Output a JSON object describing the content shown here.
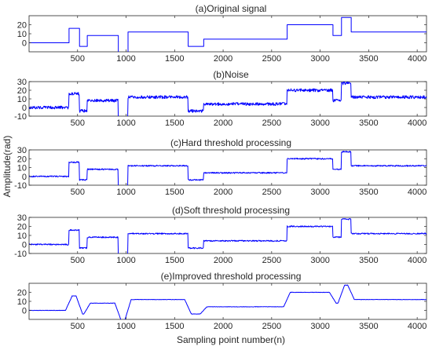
{
  "figure": {
    "ylabel": "Amplitude(rad)",
    "xlabel": "Sampling point number(n)"
  },
  "chart_data": [
    {
      "type": "line",
      "title": "(a)Original signal",
      "xlim": [
        0,
        4096
      ],
      "ylim": [
        -10,
        30
      ],
      "xticks": [
        "500",
        "1000",
        "1500",
        "2000",
        "2500",
        "3000",
        "3500",
        "4000"
      ],
      "yticks": [
        "0",
        "10",
        "20"
      ],
      "color": "#0000ff",
      "noise": 0,
      "smooth": false,
      "segments": [
        {
          "x_start": 0,
          "x_end": 410,
          "y": 0
        },
        {
          "x_start": 410,
          "x_end": 520,
          "y": 16
        },
        {
          "x_start": 520,
          "x_end": 600,
          "y": -4
        },
        {
          "x_start": 600,
          "x_end": 920,
          "y": 8
        },
        {
          "x_start": 920,
          "x_end": 1020,
          "y": -12
        },
        {
          "x_start": 1020,
          "x_end": 1640,
          "y": 12
        },
        {
          "x_start": 1640,
          "x_end": 1800,
          "y": -4
        },
        {
          "x_start": 1800,
          "x_end": 2660,
          "y": 4
        },
        {
          "x_start": 2660,
          "x_end": 3130,
          "y": 20
        },
        {
          "x_start": 3130,
          "x_end": 3220,
          "y": 8
        },
        {
          "x_start": 3220,
          "x_end": 3320,
          "y": 28
        },
        {
          "x_start": 3320,
          "x_end": 4096,
          "y": 12
        }
      ]
    },
    {
      "type": "line",
      "title": "(b)Noise",
      "xlim": [
        0,
        4096
      ],
      "ylim": [
        -10,
        30
      ],
      "xticks": [
        "500",
        "1000",
        "1500",
        "2000",
        "2500",
        "3000",
        "3500",
        "4000"
      ],
      "yticks": [
        "-10",
        "0",
        "10",
        "20",
        "30"
      ],
      "color": "#0000ff",
      "noise": 1.1,
      "smooth": false,
      "segments": [
        {
          "x_start": 0,
          "x_end": 410,
          "y": 0
        },
        {
          "x_start": 410,
          "x_end": 520,
          "y": 16
        },
        {
          "x_start": 520,
          "x_end": 600,
          "y": -4
        },
        {
          "x_start": 600,
          "x_end": 920,
          "y": 8
        },
        {
          "x_start": 920,
          "x_end": 1020,
          "y": -12
        },
        {
          "x_start": 1020,
          "x_end": 1640,
          "y": 12
        },
        {
          "x_start": 1640,
          "x_end": 1800,
          "y": -4
        },
        {
          "x_start": 1800,
          "x_end": 2660,
          "y": 4
        },
        {
          "x_start": 2660,
          "x_end": 3130,
          "y": 20
        },
        {
          "x_start": 3130,
          "x_end": 3220,
          "y": 8
        },
        {
          "x_start": 3220,
          "x_end": 3320,
          "y": 28
        },
        {
          "x_start": 3320,
          "x_end": 4096,
          "y": 12
        }
      ]
    },
    {
      "type": "line",
      "title": "(c)Hard threshold processing",
      "xlim": [
        0,
        4096
      ],
      "ylim": [
        -10,
        30
      ],
      "xticks": [
        "500",
        "1000",
        "1500",
        "2000",
        "2500",
        "3000",
        "3500",
        "4000"
      ],
      "yticks": [
        "-10",
        "0",
        "10",
        "20",
        "30"
      ],
      "color": "#0000ff",
      "noise": 0.45,
      "smooth": false,
      "segments": [
        {
          "x_start": 0,
          "x_end": 410,
          "y": 0
        },
        {
          "x_start": 410,
          "x_end": 520,
          "y": 16
        },
        {
          "x_start": 520,
          "x_end": 600,
          "y": -4
        },
        {
          "x_start": 600,
          "x_end": 920,
          "y": 8
        },
        {
          "x_start": 920,
          "x_end": 1020,
          "y": -12
        },
        {
          "x_start": 1020,
          "x_end": 1640,
          "y": 12
        },
        {
          "x_start": 1640,
          "x_end": 1800,
          "y": -4
        },
        {
          "x_start": 1800,
          "x_end": 2660,
          "y": 4
        },
        {
          "x_start": 2660,
          "x_end": 3130,
          "y": 20
        },
        {
          "x_start": 3130,
          "x_end": 3220,
          "y": 8
        },
        {
          "x_start": 3220,
          "x_end": 3320,
          "y": 28
        },
        {
          "x_start": 3320,
          "x_end": 4096,
          "y": 12
        }
      ]
    },
    {
      "type": "line",
      "title": "(d)Soft threshold processing",
      "xlim": [
        0,
        4096
      ],
      "ylim": [
        -10,
        30
      ],
      "xticks": [
        "500",
        "1000",
        "1500",
        "2000",
        "2500",
        "3000",
        "3500",
        "4000"
      ],
      "yticks": [
        "-10",
        "0",
        "10",
        "20",
        "30"
      ],
      "color": "#0000ff",
      "noise": 0.45,
      "smooth": false,
      "segments": [
        {
          "x_start": 0,
          "x_end": 410,
          "y": 0
        },
        {
          "x_start": 410,
          "x_end": 520,
          "y": 16
        },
        {
          "x_start": 520,
          "x_end": 600,
          "y": -4
        },
        {
          "x_start": 600,
          "x_end": 920,
          "y": 8
        },
        {
          "x_start": 920,
          "x_end": 1020,
          "y": -12
        },
        {
          "x_start": 1020,
          "x_end": 1640,
          "y": 12
        },
        {
          "x_start": 1640,
          "x_end": 1800,
          "y": -4
        },
        {
          "x_start": 1800,
          "x_end": 2660,
          "y": 4
        },
        {
          "x_start": 2660,
          "x_end": 3130,
          "y": 20
        },
        {
          "x_start": 3130,
          "x_end": 3220,
          "y": 8
        },
        {
          "x_start": 3220,
          "x_end": 3320,
          "y": 28
        },
        {
          "x_start": 3320,
          "x_end": 4096,
          "y": 12
        }
      ]
    },
    {
      "type": "line",
      "title": "(e)Improved threshold processing",
      "xlim": [
        0,
        4096
      ],
      "ylim": [
        -10,
        30
      ],
      "xticks": [
        "500",
        "1000",
        "1500",
        "2000",
        "2500",
        "3000",
        "3500",
        "4000"
      ],
      "yticks": [
        "0",
        "10",
        "20"
      ],
      "color": "#0000ff",
      "noise": 0.2,
      "smooth": true,
      "segments": [
        {
          "x_start": 0,
          "x_end": 410,
          "y": 0
        },
        {
          "x_start": 410,
          "x_end": 520,
          "y": 16
        },
        {
          "x_start": 520,
          "x_end": 600,
          "y": -4
        },
        {
          "x_start": 600,
          "x_end": 920,
          "y": 8
        },
        {
          "x_start": 920,
          "x_end": 1020,
          "y": -12
        },
        {
          "x_start": 1020,
          "x_end": 1640,
          "y": 12
        },
        {
          "x_start": 1640,
          "x_end": 1800,
          "y": -4
        },
        {
          "x_start": 1800,
          "x_end": 2660,
          "y": 4
        },
        {
          "x_start": 2660,
          "x_end": 3130,
          "y": 20
        },
        {
          "x_start": 3130,
          "x_end": 3220,
          "y": 8
        },
        {
          "x_start": 3220,
          "x_end": 3320,
          "y": 28
        },
        {
          "x_start": 3320,
          "x_end": 4096,
          "y": 12
        }
      ]
    }
  ]
}
